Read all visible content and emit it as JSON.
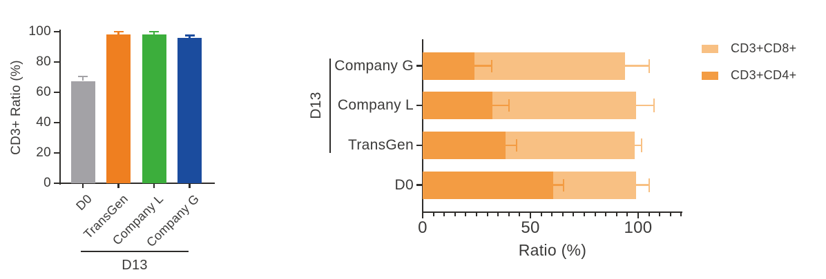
{
  "colors": {
    "axis": "#2d2b29",
    "text": "#3b3a39",
    "background": "#ffffff"
  },
  "chart_data": [
    {
      "id": "cd3-ratio-vertical-bar",
      "type": "bar",
      "ylabel": "CD3+ Ratio (%)",
      "categories": [
        "D0",
        "TransGen",
        "Company L",
        "Company G"
      ],
      "values": [
        67.5,
        98.4,
        98.4,
        95.8
      ],
      "errors_plus": [
        3.0,
        1.6,
        1.6,
        1.7
      ],
      "bar_colors": [
        "#a3a2a6",
        "#ef7f20",
        "#3cae3c",
        "#1b4c9e"
      ],
      "ylim": [
        0,
        100
      ],
      "yticks": [
        0,
        20,
        40,
        60,
        80,
        100
      ],
      "grid": false,
      "group_annotation": {
        "label": "D13",
        "applies_to": [
          "TransGen",
          "Company L",
          "Company G"
        ]
      }
    },
    {
      "id": "cd4-cd8-stacked-horizontal-bar",
      "type": "bar",
      "orientation": "horizontal-stacked",
      "xlabel": "Ratio (%)",
      "categories": [
        "Company G",
        "Company L",
        "TransGen",
        "D0"
      ],
      "series": [
        {
          "name": "CD3+CD4+",
          "color": "#f39c43",
          "values": [
            24,
            32.5,
            38.5,
            60.5
          ],
          "errors_plus": [
            8,
            7.5,
            5,
            5
          ]
        },
        {
          "name": "CD3+CD8+",
          "color": "#f8c083",
          "values": [
            70,
            66.5,
            60,
            38.5
          ],
          "errors_plus": [
            11,
            8.5,
            3,
            6
          ]
        }
      ],
      "stacked_totals": [
        94,
        99,
        98.5,
        99
      ],
      "xlim": [
        0,
        120
      ],
      "xticks_major": [
        0,
        50,
        100
      ],
      "xtick_minor_step": 5,
      "grid": false,
      "legend": [
        {
          "label": "CD3+CD8+",
          "color": "#f8c083"
        },
        {
          "label": "CD3+CD4+",
          "color": "#f39c43"
        }
      ],
      "legend_position": "top-right",
      "group_annotation": {
        "label": "D13",
        "applies_to": [
          "Company G",
          "Company L",
          "TransGen"
        ]
      }
    }
  ]
}
